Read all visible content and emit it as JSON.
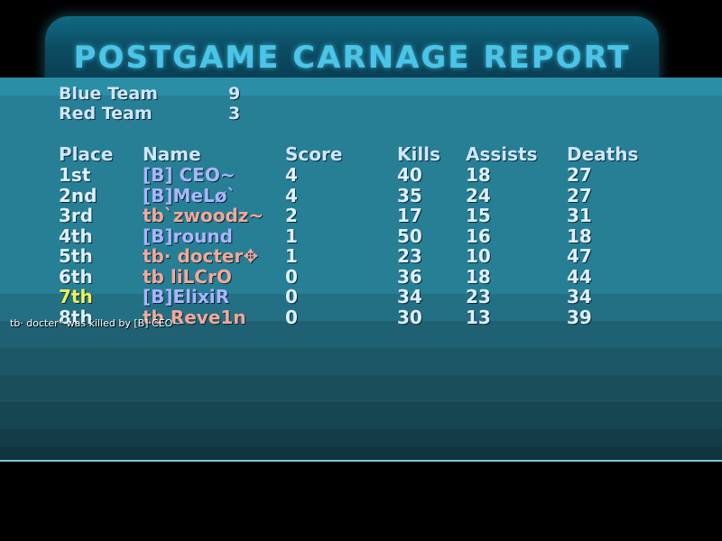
{
  "header": {
    "title": "POSTGAME CARNAGE REPORT"
  },
  "teams": [
    {
      "name": "Blue Team",
      "score": "9"
    },
    {
      "name": "Red Team",
      "score": "3"
    }
  ],
  "columns": {
    "place": "Place",
    "name": "Name",
    "score": "Score",
    "kills": "Kills",
    "assists": "Assists",
    "deaths": "Deaths"
  },
  "rows": [
    {
      "place": "1st",
      "name": "[B] CEO~",
      "team": "blue",
      "score": "4",
      "kills": "40",
      "assists": "18",
      "deaths": "27"
    },
    {
      "place": "2nd",
      "name": "[B]MeLø`",
      "team": "blue",
      "score": "4",
      "kills": "35",
      "assists": "24",
      "deaths": "27"
    },
    {
      "place": "3rd",
      "name": "tb`zwoodz~",
      "team": "red",
      "score": "2",
      "kills": "17",
      "assists": "15",
      "deaths": "31"
    },
    {
      "place": "4th",
      "name": "[B]round",
      "team": "blue",
      "score": "1",
      "kills": "50",
      "assists": "16",
      "deaths": "18"
    },
    {
      "place": "5th",
      "name": "tb· docter✥",
      "team": "red",
      "score": "1",
      "kills": "23",
      "assists": "10",
      "deaths": "47"
    },
    {
      "place": "6th",
      "name": "tb liLCrO",
      "team": "red",
      "score": "0",
      "kills": "36",
      "assists": "18",
      "deaths": "44"
    },
    {
      "place": "7th",
      "name": "[B]ElixiR",
      "team": "blue",
      "score": "0",
      "kills": "34",
      "assists": "23",
      "deaths": "34"
    },
    {
      "place": "8th",
      "name": "tb Reve1n",
      "team": "red",
      "score": "0",
      "kills": "30",
      "assists": "13",
      "deaths": "39"
    }
  ],
  "highlight_place_row": 6,
  "killfeed": "tb· docter* was killed by [B] CEO~"
}
